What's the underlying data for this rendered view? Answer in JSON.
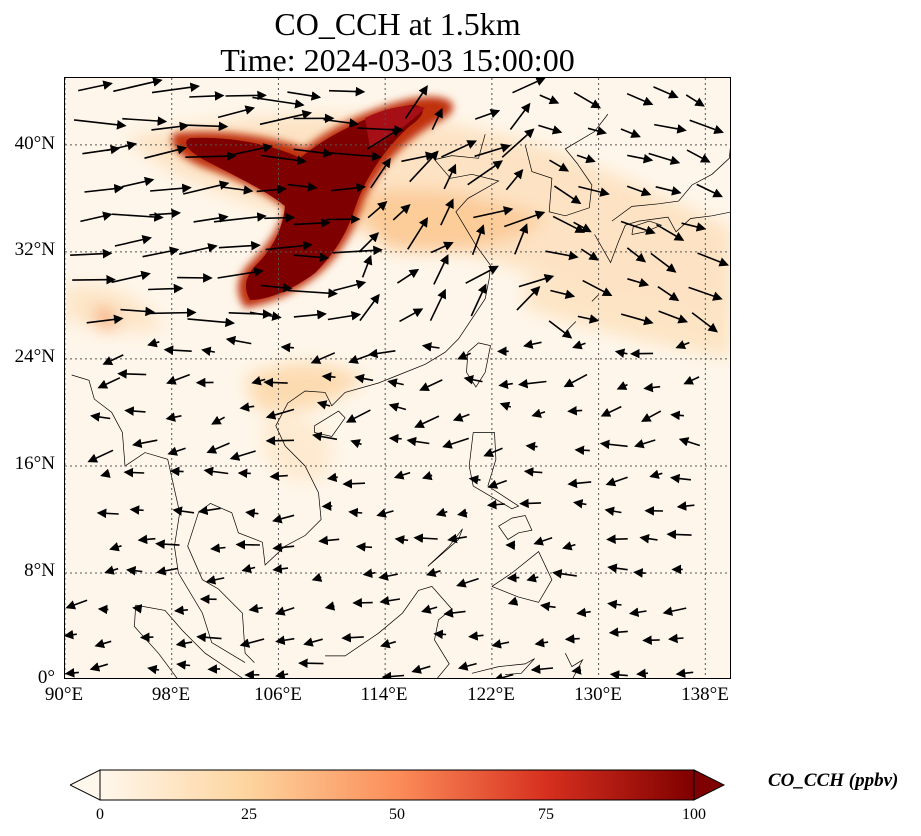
{
  "title": {
    "line1": "CO_CCH at 1.5km",
    "line2": "Time: 2024-03-03 15:00:00"
  },
  "map": {
    "lon_range": [
      90,
      140
    ],
    "lat_range": [
      0,
      45
    ],
    "lon_ticks": [
      "90°E",
      "98°E",
      "106°E",
      "114°E",
      "122°E",
      "130°E",
      "138°E"
    ],
    "lat_ticks": [
      "0°",
      "8°N",
      "16°N",
      "24°N",
      "32°N",
      "40°N"
    ],
    "gridlines": true,
    "field": "CO_CCH",
    "plume_color_scale": "OrRd"
  },
  "colorbar": {
    "label": "CO_CCH (ppbv)",
    "ticks": [
      "0",
      "25",
      "50",
      "75",
      "100"
    ],
    "min": 0,
    "max": 100,
    "extend": "both",
    "colors": [
      "#fff7ec",
      "#fdd49e",
      "#fc8d59",
      "#d7301f",
      "#7f0000"
    ]
  }
}
